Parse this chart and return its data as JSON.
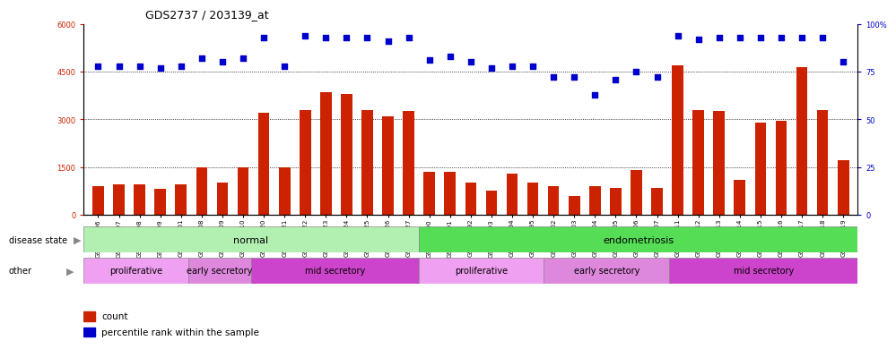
{
  "title": "GDS2737 / 203139_at",
  "samples": [
    "GSM150196",
    "GSM150197",
    "GSM150198",
    "GSM150199",
    "GSM150201",
    "GSM150208",
    "GSM150209",
    "GSM150210",
    "GSM150220",
    "GSM150221",
    "GSM150222",
    "GSM150223",
    "GSM150224",
    "GSM150225",
    "GSM150226",
    "GSM150227",
    "GSM150190",
    "GSM150191",
    "GSM150192",
    "GSM150193",
    "GSM150194",
    "GSM150195",
    "GSM150202",
    "GSM150203",
    "GSM150204",
    "GSM150205",
    "GSM150206",
    "GSM150207",
    "GSM150211",
    "GSM150212",
    "GSM150213",
    "GSM150214",
    "GSM150215",
    "GSM150216",
    "GSM150217",
    "GSM150218",
    "GSM150219"
  ],
  "counts": [
    900,
    950,
    950,
    800,
    950,
    1500,
    1000,
    1500,
    3200,
    1500,
    3300,
    3850,
    3800,
    3300,
    3100,
    3250,
    1350,
    1350,
    1000,
    750,
    1300,
    1000,
    900,
    600,
    900,
    850,
    1400,
    850,
    4700,
    3300,
    3250,
    1100,
    2900,
    2950,
    4650,
    3300,
    1700
  ],
  "percentile_ranks": [
    78,
    78,
    78,
    77,
    78,
    82,
    80,
    82,
    93,
    78,
    94,
    93,
    93,
    93,
    91,
    93,
    81,
    83,
    80,
    77,
    78,
    78,
    72,
    72,
    63,
    71,
    75,
    72,
    94,
    92,
    93,
    93,
    93,
    93,
    93,
    93,
    80
  ],
  "bar_color": "#cc2200",
  "dot_color": "#0000cc",
  "ylim_left": [
    0,
    6000
  ],
  "ylim_right": [
    0,
    100
  ],
  "yticks_left": [
    0,
    1500,
    3000,
    4500,
    6000
  ],
  "yticks_right": [
    0,
    25,
    50,
    75,
    100
  ],
  "groups": [
    {
      "label": "normal",
      "color": "#b2f0b2",
      "start": 0,
      "end": 16
    },
    {
      "label": "endometriosis",
      "color": "#55dd55",
      "start": 16,
      "end": 37
    }
  ],
  "subgroups": [
    {
      "label": "proliferative",
      "color": "#f0a0f0",
      "start": 0,
      "end": 5
    },
    {
      "label": "early secretory",
      "color": "#dd88dd",
      "start": 5,
      "end": 8
    },
    {
      "label": "mid secretory",
      "color": "#cc44cc",
      "start": 8,
      "end": 16
    },
    {
      "label": "proliferative",
      "color": "#f0a0f0",
      "start": 16,
      "end": 22
    },
    {
      "label": "early secretory",
      "color": "#dd88dd",
      "start": 22,
      "end": 28
    },
    {
      "label": "mid secretory",
      "color": "#cc44cc",
      "start": 28,
      "end": 37
    }
  ],
  "legend_items": [
    {
      "label": "count",
      "color": "#cc2200"
    },
    {
      "label": "percentile rank within the sample",
      "color": "#0000cc"
    }
  ],
  "dotted_line_color": "#000000",
  "title_fontsize": 9,
  "tick_fontsize": 6,
  "bar_width": 0.55
}
